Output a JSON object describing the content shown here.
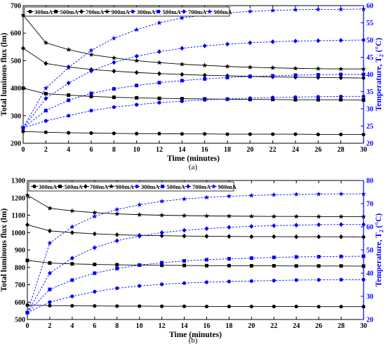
{
  "chart_data": [
    {
      "type": "line",
      "panel_label": "(a)",
      "xlabel": "Time (minutes)",
      "ylabel_left": "Total luminous flux (lm)",
      "ylabel_right": "Temperature, T",
      "ylabel_right_sub": "2",
      "ylabel_right_tail": " (°C)",
      "xlim": [
        0,
        30
      ],
      "ylim_left": [
        200,
        700
      ],
      "ylim_right": [
        20,
        60
      ],
      "x_ticks": [
        "0",
        "2",
        "4",
        "6",
        "8",
        "10",
        "12",
        "14",
        "16",
        "18",
        "20",
        "22",
        "24",
        "26",
        "28",
        "30"
      ],
      "yl_ticks": [
        "200",
        "300",
        "400",
        "500",
        "600",
        "700"
      ],
      "yr_ticks": [
        "20",
        "25",
        "30",
        "35",
        "40",
        "45",
        "50",
        "55",
        "60"
      ],
      "x": [
        0,
        2,
        4,
        6,
        8,
        10,
        12,
        14,
        16,
        18,
        20,
        22,
        24,
        26,
        28,
        30
      ],
      "flux_series": [
        {
          "name": "300mA",
          "marker": "circle",
          "values": [
            243,
            240,
            238,
            237,
            236,
            235,
            235,
            234,
            234,
            233,
            233,
            233,
            233,
            232,
            232,
            232
          ]
        },
        {
          "name": "500mA",
          "marker": "square",
          "values": [
            400,
            380,
            375,
            370,
            367,
            365,
            363,
            362,
            361,
            360,
            359,
            359,
            358,
            358,
            358,
            357
          ]
        },
        {
          "name": "700mA",
          "marker": "diamond",
          "values": [
            545,
            490,
            477,
            468,
            462,
            457,
            453,
            450,
            447,
            445,
            443,
            441,
            440,
            439,
            438,
            437
          ]
        },
        {
          "name": "900mA",
          "marker": "star",
          "values": [
            665,
            565,
            540,
            522,
            510,
            500,
            493,
            487,
            483,
            479,
            476,
            474,
            472,
            471,
            470,
            470
          ]
        }
      ],
      "temp_series": [
        {
          "name": "300mA",
          "marker": "circle",
          "values": [
            24.5,
            26.5,
            28,
            29.5,
            30.5,
            31.2,
            31.8,
            32.2,
            32.6,
            32.9,
            33.1,
            33.3,
            33.4,
            33.5,
            33.6,
            33.6
          ]
        },
        {
          "name": "500mA",
          "marker": "square",
          "values": [
            24.5,
            29.5,
            32.5,
            34.5,
            35.8,
            36.8,
            37.6,
            38.2,
            38.7,
            39.1,
            39.4,
            39.6,
            39.8,
            39.9,
            40,
            40
          ]
        },
        {
          "name": "700mA",
          "marker": "diamond",
          "values": [
            24.5,
            33,
            37.5,
            41,
            43.5,
            45.3,
            46.6,
            47.6,
            48.3,
            48.8,
            49.2,
            49.5,
            49.7,
            49.8,
            49.9,
            50
          ]
        },
        {
          "name": "900mA",
          "marker": "star",
          "values": [
            24.5,
            36,
            42,
            47,
            50.5,
            53,
            55,
            56.4,
            57.3,
            57.9,
            58.3,
            58.6,
            58.8,
            58.9,
            58.9,
            59
          ]
        }
      ],
      "legend": {
        "position": "top-left",
        "flux_labels": [
          "300mA",
          "500mA",
          "700mA",
          "900mA"
        ],
        "temp_labels": [
          "300mA",
          "500mA",
          "700mA",
          "900mA"
        ]
      },
      "grid": false,
      "colors": {
        "flux": "#000000",
        "temperature": "#0000ff"
      }
    },
    {
      "type": "line",
      "panel_label": "(b)",
      "xlabel": "Time (minutes)",
      "ylabel_left": "Total luminous flux (lm)",
      "ylabel_right": "Temperature, T",
      "ylabel_right_sub": "2",
      "ylabel_right_tail": " (°C)",
      "xlim": [
        0,
        30
      ],
      "ylim_left": [
        500,
        1300
      ],
      "ylim_right": [
        20,
        80
      ],
      "x_ticks": [
        "0",
        "2",
        "4",
        "6",
        "8",
        "10",
        "12",
        "14",
        "16",
        "18",
        "20",
        "22",
        "24",
        "26",
        "28",
        "30"
      ],
      "yl_ticks": [
        "500",
        "600",
        "700",
        "800",
        "900",
        "1000",
        "1100",
        "1200",
        "1300"
      ],
      "yr_ticks": [
        "20",
        "30",
        "40",
        "50",
        "60",
        "70",
        "80"
      ],
      "x": [
        0,
        2,
        4,
        6,
        8,
        10,
        12,
        14,
        16,
        18,
        20,
        22,
        24,
        26,
        28,
        30
      ],
      "flux_series": [
        {
          "name": "300mA",
          "marker": "circle",
          "values": [
            583,
            580,
            579,
            578,
            577,
            577,
            576,
            576,
            575,
            575,
            575,
            575,
            575,
            574,
            574,
            574
          ]
        },
        {
          "name": "500mA",
          "marker": "square",
          "values": [
            840,
            825,
            820,
            817,
            815,
            813,
            812,
            811,
            810,
            810,
            809,
            809,
            808,
            808,
            808,
            807
          ]
        },
        {
          "name": "700mA",
          "marker": "diamond",
          "values": [
            1045,
            1010,
            1000,
            993,
            988,
            984,
            982,
            980,
            979,
            978,
            977,
            977,
            976,
            976,
            976,
            975
          ]
        },
        {
          "name": "900mA",
          "marker": "star",
          "values": [
            1215,
            1140,
            1125,
            1115,
            1108,
            1103,
            1100,
            1098,
            1096,
            1095,
            1094,
            1093,
            1093,
            1092,
            1092,
            1092
          ]
        }
      ],
      "temp_series": [
        {
          "name": "300mA",
          "marker": "circle",
          "values": [
            23,
            27.5,
            30,
            32,
            33.5,
            34.5,
            35.2,
            35.7,
            36.1,
            36.4,
            36.6,
            36.8,
            37,
            37.1,
            37.2,
            37.2
          ]
        },
        {
          "name": "500mA",
          "marker": "square",
          "values": [
            23,
            33,
            37,
            40,
            42,
            43.5,
            44.5,
            45.3,
            45.8,
            46.2,
            46.5,
            46.8,
            47,
            47.1,
            47.2,
            47.3
          ]
        },
        {
          "name": "700mA",
          "marker": "diamond",
          "values": [
            23,
            40,
            46.5,
            51,
            54,
            56,
            57.5,
            58.5,
            59.2,
            59.8,
            60.2,
            60.5,
            60.7,
            60.9,
            61,
            61
          ]
        },
        {
          "name": "900mA",
          "marker": "star",
          "values": [
            23,
            53,
            60,
            64.5,
            67.5,
            69.5,
            71,
            72,
            72.7,
            73.2,
            73.5,
            73.8,
            74,
            74.1,
            74.2,
            74.2
          ]
        }
      ],
      "legend": {
        "position": "top-left",
        "flux_labels": [
          "300mA",
          "500mA",
          "700mA",
          "900mA"
        ],
        "temp_labels": [
          "300mA",
          "500mA",
          "700mA",
          "900mA"
        ]
      },
      "grid": false,
      "colors": {
        "flux": "#000000",
        "temperature": "#0000ff"
      }
    }
  ]
}
